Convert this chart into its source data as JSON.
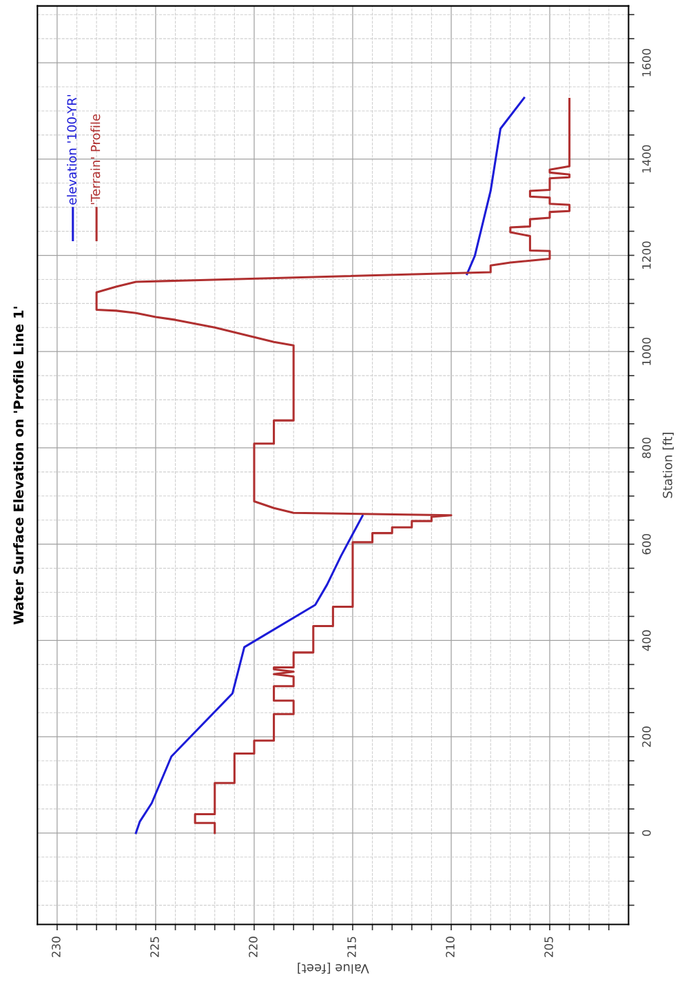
{
  "chart_data": {
    "type": "line",
    "title": "Water Surface Elevation on 'Profile Line 1'",
    "xlabel": "Value [feet]",
    "ylabel": "Station [ft]",
    "xlim": [
      231,
      201
    ],
    "ylim": [
      -190,
      1718
    ],
    "yticks": [
      {
        "value": -150,
        "label": null
      },
      {
        "value": -100,
        "label": null
      },
      {
        "value": -50,
        "label": null
      },
      0,
      {
        "value": 50,
        "label": null
      },
      {
        "value": 100,
        "label": null
      },
      {
        "value": 150,
        "label": null
      },
      200,
      {
        "value": 250,
        "label": null
      },
      {
        "value": 300,
        "label": null
      },
      {
        "value": 350,
        "label": null
      },
      400,
      {
        "value": 450,
        "label": null
      },
      {
        "value": 500,
        "label": null
      },
      {
        "value": 550,
        "label": null
      },
      600,
      {
        "value": 650,
        "label": null
      },
      {
        "value": 700,
        "label": null
      },
      {
        "value": 750,
        "label": null
      },
      800,
      {
        "value": 850,
        "label": null
      },
      {
        "value": 900,
        "label": null
      },
      {
        "value": 950,
        "label": null
      },
      1000,
      {
        "value": 1050,
        "label": null
      },
      {
        "value": 1100,
        "label": null
      },
      {
        "value": 1150,
        "label": null
      },
      1200,
      {
        "value": 1250,
        "label": null
      },
      {
        "value": 1300,
        "label": null
      },
      {
        "value": 1350,
        "label": null
      },
      1400,
      {
        "value": 1450,
        "label": null
      },
      {
        "value": 1500,
        "label": null
      },
      {
        "value": 1550,
        "label": null
      },
      1600,
      {
        "value": 1650,
        "label": null
      },
      {
        "value": 1700,
        "label": null
      }
    ],
    "xticks": [
      {
        "value": 202,
        "label": null
      },
      {
        "value": 203,
        "label": null
      },
      {
        "value": 204,
        "label": null
      },
      205,
      {
        "value": 206,
        "label": null
      },
      {
        "value": 207,
        "label": null
      },
      {
        "value": 208,
        "label": null
      },
      {
        "value": 209,
        "label": null
      },
      210,
      {
        "value": 211,
        "label": null
      },
      {
        "value": 212,
        "label": null
      },
      {
        "value": 213,
        "label": null
      },
      {
        "value": 214,
        "label": null
      },
      215,
      {
        "value": 216,
        "label": null
      },
      {
        "value": 217,
        "label": null
      },
      {
        "value": 218,
        "label": null
      },
      {
        "value": 219,
        "label": null
      },
      220,
      {
        "value": 221,
        "label": null
      },
      {
        "value": 222,
        "label": null
      },
      {
        "value": 223,
        "label": null
      },
      {
        "value": 224,
        "label": null
      },
      225,
      {
        "value": 226,
        "label": null
      },
      {
        "value": 227,
        "label": null
      },
      {
        "value": 228,
        "label": null
      },
      {
        "value": 229,
        "label": null
      },
      230
    ],
    "grid": true,
    "legend": "top left",
    "line_style": "solid",
    "series": [
      {
        "name": "elevation '100-YR'",
        "color": "#1c1cd8",
        "values": [
          0,
          24,
          62,
          159,
          290,
          386,
          474,
          516,
          575,
          659
        ],
        "x": [
          226.0,
          225.8,
          225.2,
          224.2,
          221.1,
          220.5,
          216.9,
          216.3,
          215.6,
          214.5
        ]
      },
      {
        "color": "#1c1cd8",
        "values": [
          1161,
          1199,
          1334,
          1463,
          1527
        ],
        "x": [
          209.2,
          208.8,
          208.0,
          207.5,
          206.3
        ]
      },
      {
        "name": "'Terrain' Profile",
        "color": "#b03030",
        "values": [
          0,
          21,
          21,
          39,
          39,
          104,
          104,
          165,
          165,
          192,
          192,
          247,
          247,
          275,
          275,
          305,
          305,
          325,
          330,
          335,
          340,
          344,
          344,
          375,
          375,
          430,
          430,
          470,
          470,
          604,
          604,
          623,
          623,
          635,
          635,
          648,
          648,
          657,
          660,
          665,
          675,
          689,
          809,
          809,
          857,
          857,
          1013,
          1020,
          1030,
          1040,
          1050,
          1058,
          1066,
          1072,
          1080,
          1085,
          1087,
          1123,
          1135,
          1145,
          1165,
          1179,
          1185,
          1193,
          1209,
          1210,
          1240,
          1248,
          1258,
          1260,
          1275,
          1278,
          1290,
          1292,
          1305,
          1307,
          1320,
          1322,
          1334,
          1336,
          1360,
          1362,
          1368,
          1372,
          1378,
          1385,
          1525
        ],
        "x": [
          222,
          222,
          223,
          223,
          222,
          222,
          221,
          221,
          220,
          220,
          219,
          219,
          218,
          218,
          219,
          219,
          218,
          218,
          219,
          218,
          219,
          219,
          218,
          218,
          217,
          217,
          216,
          216,
          215,
          215,
          214,
          214,
          213,
          213,
          212,
          212,
          211,
          211,
          210,
          218,
          219,
          220,
          220,
          219,
          219,
          218,
          218,
          219,
          220,
          221,
          222,
          223,
          224,
          225,
          226,
          227,
          228,
          228,
          227,
          226,
          208,
          208,
          207,
          205,
          205,
          206,
          206,
          207,
          207,
          206,
          206,
          205,
          205,
          204,
          204,
          205,
          205,
          206,
          206,
          205,
          205,
          204,
          204,
          205,
          205,
          204,
          204
        ]
      }
    ]
  }
}
